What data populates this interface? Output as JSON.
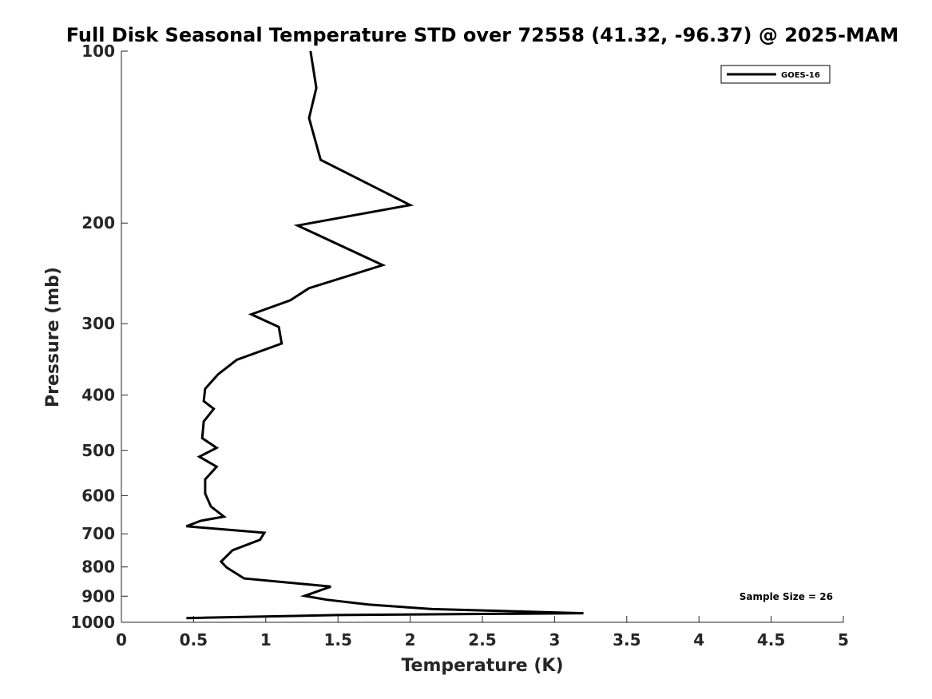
{
  "chart_data": {
    "type": "line",
    "title": "Full Disk Seasonal Temperature STD over 72558 (41.32, -96.37) @ 2025-MAM",
    "xlabel": "Temperature (K)",
    "ylabel": "Pressure (mb)",
    "xlim": [
      0,
      5
    ],
    "ylim": [
      100,
      1000
    ],
    "y_scale": "log",
    "y_reversed": true,
    "xticks": [
      0,
      0.5,
      1,
      1.5,
      2,
      2.5,
      3,
      3.5,
      4,
      4.5,
      5
    ],
    "xtick_labels": [
      "0",
      "0.5",
      "1",
      "1.5",
      "2",
      "2.5",
      "3",
      "3.5",
      "4",
      "4.5",
      "5"
    ],
    "yticks": [
      100,
      200,
      300,
      400,
      500,
      600,
      700,
      800,
      900,
      1000
    ],
    "ytick_labels": [
      "100",
      "200",
      "300",
      "400",
      "500",
      "600",
      "700",
      "800",
      "900",
      "1000"
    ],
    "grid": false,
    "legend_position": "top-right",
    "annotation": "Sample Size = 26",
    "series": [
      {
        "name": "GOES-16",
        "color": "#000000",
        "x": [
          1.31,
          1.35,
          1.3,
          1.38,
          2.0,
          1.22,
          1.81,
          1.3,
          1.17,
          0.9,
          1.09,
          1.11,
          0.8,
          0.67,
          0.58,
          0.57,
          0.64,
          0.57,
          0.56,
          0.66,
          0.54,
          0.66,
          0.58,
          0.58,
          0.62,
          0.71,
          0.55,
          0.45,
          0.99,
          0.96,
          0.77,
          0.69,
          0.73,
          0.85,
          1.45,
          1.27,
          1.42,
          1.71,
          2.15,
          3.2,
          1.5,
          0.45
        ],
        "y": [
          100,
          116,
          131,
          155,
          186,
          202,
          237,
          260,
          273,
          289,
          304,
          325,
          347,
          368,
          390,
          410,
          423,
          445,
          476,
          495,
          513,
          534,
          562,
          595,
          627,
          653,
          664,
          679,
          697,
          717,
          748,
          783,
          802,
          838,
          866,
          899,
          913,
          931,
          948,
          964,
          971,
          983
        ]
      }
    ]
  }
}
